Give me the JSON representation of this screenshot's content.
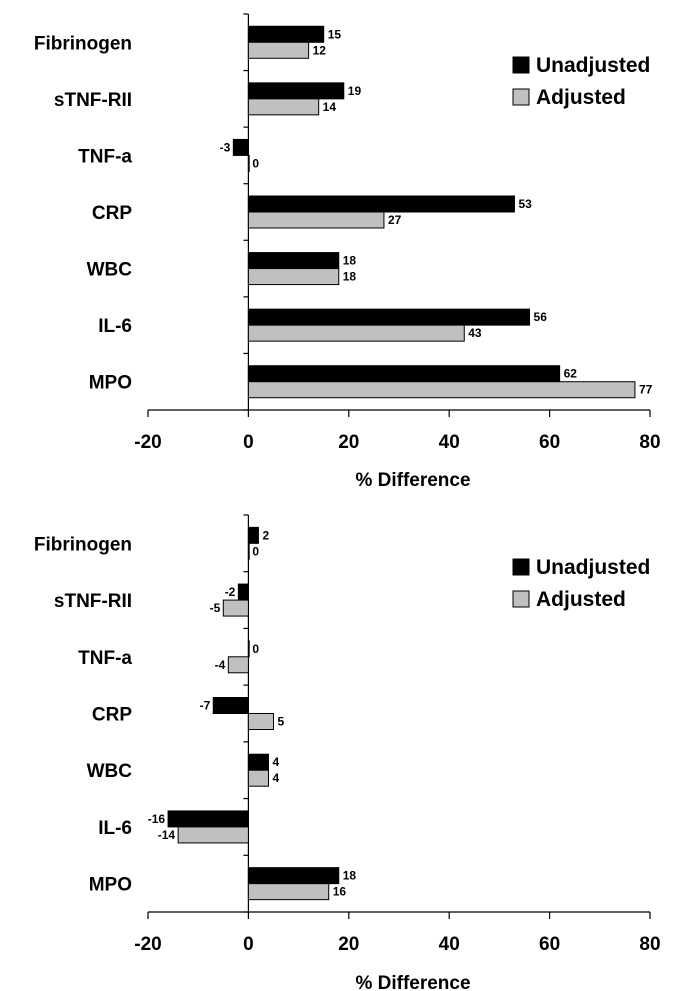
{
  "chart_data": [
    {
      "type": "bar",
      "orientation": "horizontal",
      "categories": [
        "Fibrinogen",
        "sTNF-RII",
        "TNF-a",
        "CRP",
        "WBC",
        "IL-6",
        "MPO"
      ],
      "series": [
        {
          "name": "Unadjusted",
          "color": "#000000",
          "values": [
            15,
            19,
            -3,
            53,
            18,
            56,
            62
          ],
          "labels": [
            "15",
            "19",
            "-3",
            "53",
            "18",
            "56",
            "62"
          ]
        },
        {
          "name": "Adjusted",
          "color": "#c0c0c0",
          "values": [
            12,
            14,
            0,
            27,
            18,
            43,
            77
          ],
          "labels": [
            "12",
            "14",
            "0",
            "27",
            "18",
            "43",
            "77"
          ]
        }
      ],
      "xlim": [
        -20,
        80
      ],
      "xticks": [
        "-20",
        "0",
        "20",
        "40",
        "60",
        "80"
      ],
      "xlabel": "% Difference",
      "legend": "top-right",
      "grid": false
    },
    {
      "type": "bar",
      "orientation": "horizontal",
      "categories": [
        "Fibrinogen",
        "sTNF-RII",
        "TNF-a",
        "CRP",
        "WBC",
        "IL-6",
        "MPO"
      ],
      "series": [
        {
          "name": "Unadjusted",
          "color": "#000000",
          "values": [
            2,
            -2,
            0,
            -7,
            4,
            -16,
            18
          ],
          "labels": [
            "2",
            "-2",
            "0",
            "-7",
            "4",
            "-16",
            "18"
          ]
        },
        {
          "name": "Adjusted",
          "color": "#c0c0c0",
          "values": [
            0,
            -5,
            -4,
            5,
            4,
            -14,
            16
          ],
          "labels": [
            "0",
            "-5",
            "-4",
            "5",
            "4",
            "-14",
            "16"
          ]
        }
      ],
      "xlim": [
        -20,
        80
      ],
      "xticks": [
        "-20",
        "0",
        "20",
        "40",
        "60",
        "80"
      ],
      "xlabel": "% Difference",
      "legend": "top-right",
      "grid": false
    }
  ]
}
